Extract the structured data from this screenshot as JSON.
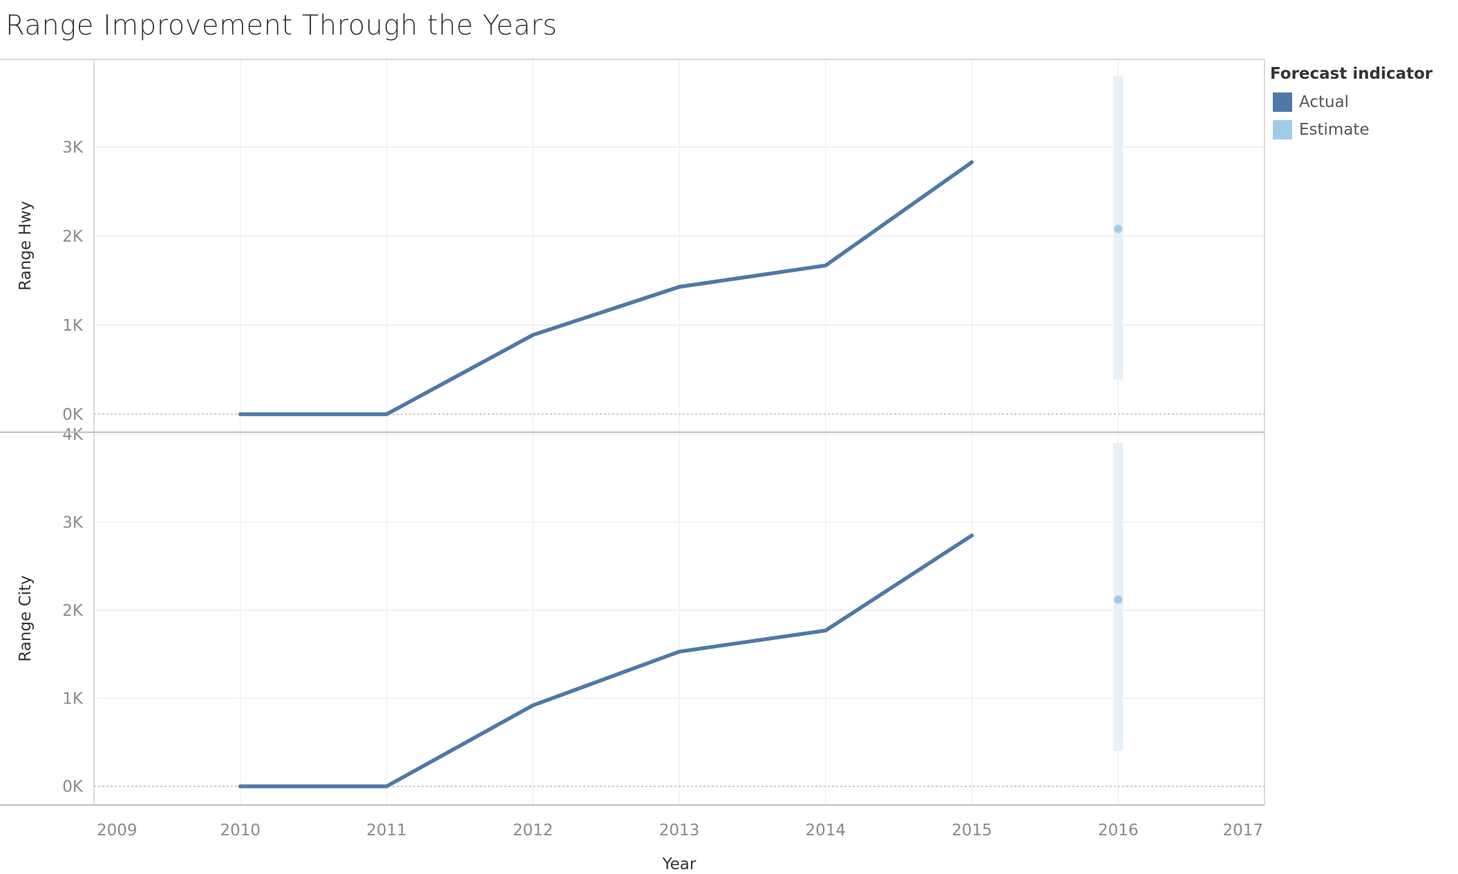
{
  "title": "Range Improvement Through the Years",
  "legend": {
    "title": "Forecast indicator",
    "items": [
      {
        "label": "Actual",
        "color": "#4e79a7"
      },
      {
        "label": "Estimate",
        "color": "#a0cbe8"
      }
    ]
  },
  "chart_data": {
    "type": "line",
    "title": "Range Improvement Through the Years",
    "xlabel": "Year",
    "x_ticks": [
      "2009",
      "2010",
      "2011",
      "2012",
      "2013",
      "2014",
      "2015",
      "2016",
      "2017"
    ],
    "xlim": [
      2009,
      2017
    ],
    "grid": true,
    "legend_position": "top-right",
    "colors": {
      "actual": "#4e79a7",
      "estimate": "#a0cbe8",
      "band": "#e6f0f8"
    },
    "panels": [
      {
        "ylabel": "Range Hwy",
        "ylim": [
          0,
          3000
        ],
        "y_ticks": [
          "0K",
          "1K",
          "2K",
          "3K"
        ],
        "y_tick_values": [
          0,
          1000,
          2000,
          3000
        ],
        "series": [
          {
            "name": "Actual",
            "x": [
              2010,
              2011,
              2012,
              2013,
              2014,
              2015
            ],
            "y": [
              0,
              0,
              890,
              1430,
              1670,
              2830
            ]
          },
          {
            "name": "Estimate",
            "x": [
              2016
            ],
            "y": [
              2080
            ],
            "band": [
              [
                390,
                3800
              ]
            ]
          }
        ]
      },
      {
        "ylabel": "Range City",
        "ylim": [
          0,
          4000
        ],
        "y_ticks": [
          "0K",
          "1K",
          "2K",
          "3K",
          "4K"
        ],
        "y_tick_values": [
          0,
          1000,
          2000,
          3000,
          4000
        ],
        "series": [
          {
            "name": "Actual",
            "x": [
              2010,
              2011,
              2012,
              2013,
              2014,
              2015
            ],
            "y": [
              0,
              0,
              920,
              1530,
              1770,
              2850
            ]
          },
          {
            "name": "Estimate",
            "x": [
              2016
            ],
            "y": [
              2120
            ],
            "band": [
              [
                400,
                3900
              ]
            ]
          }
        ]
      }
    ]
  }
}
